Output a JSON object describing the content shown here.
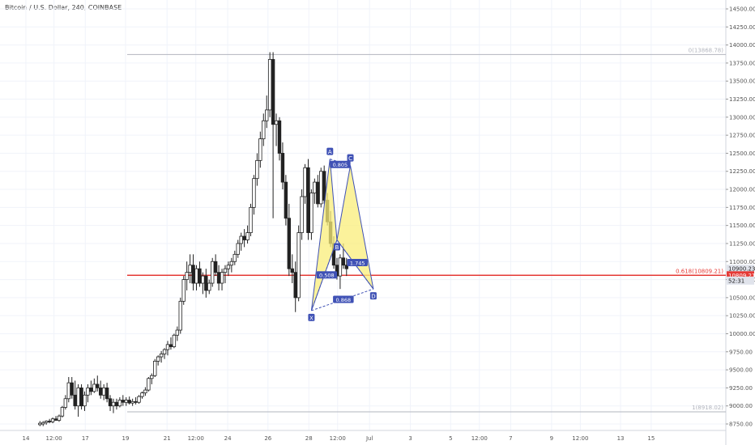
{
  "header": {
    "title": "Bitcoin / U.S. Dollar, 240, COINBASE"
  },
  "chart_data": {
    "type": "candlestick",
    "ylim": [
      8700,
      14750
    ],
    "xlim": [
      0,
      100
    ],
    "y_ticks": [
      8750,
      9000,
      9250,
      9500,
      9750,
      10000,
      10250,
      10500,
      10750,
      11000,
      11250,
      11500,
      11750,
      12000,
      12250,
      12500,
      12750,
      13000,
      13250,
      13500,
      13750,
      14000,
      14250,
      14500
    ],
    "y_tick_labels": [
      "8750.00",
      "9000.00",
      "9250.00",
      "9500.00",
      "9750.00",
      "10000.00",
      "10250.00",
      "10500.00",
      "10750.00",
      "11000.00",
      "11250.00",
      "11500.00",
      "11750.00",
      "12000.00",
      "12250.00",
      "12500.00",
      "12750.00",
      "13000.00",
      "13250.00",
      "13500.00",
      "13750.00",
      "14000.00",
      "14250.00",
      "14500.00"
    ],
    "x_ticks": [
      {
        "x": 3.8,
        "label": "14"
      },
      {
        "x": 8.2,
        "label": "12:00"
      },
      {
        "x": 13.1,
        "label": "17"
      },
      {
        "x": 19.4,
        "label": "19"
      },
      {
        "x": 25.9,
        "label": "21"
      },
      {
        "x": 30.4,
        "label": "12:00"
      },
      {
        "x": 35.4,
        "label": "24"
      },
      {
        "x": 41.7,
        "label": "26"
      },
      {
        "x": 48.1,
        "label": "28"
      },
      {
        "x": 52.6,
        "label": "12:00"
      },
      {
        "x": 57.6,
        "label": "Jul"
      },
      {
        "x": 64.0,
        "label": "3"
      },
      {
        "x": 70.3,
        "label": "5"
      },
      {
        "x": 74.8,
        "label": "12:00"
      },
      {
        "x": 79.7,
        "label": "7"
      },
      {
        "x": 86.1,
        "label": "9"
      },
      {
        "x": 90.6,
        "label": "12:00"
      },
      {
        "x": 96.9,
        "label": "13"
      },
      {
        "x": 101.7,
        "label": "15"
      }
    ],
    "price_axis_labels": [
      {
        "price": 10900.23,
        "label": "10900.23"
      },
      {
        "price": 10809.21,
        "label": "10809.21"
      },
      {
        "price": 10770,
        "label": "52:31"
      }
    ],
    "horizontal_lines": [
      {
        "price": 13868.78,
        "label": "0(13868.78)",
        "color": "#b2b5be"
      },
      {
        "price": 10809.21,
        "label": "0.618(10809.21)",
        "color": "#e53935"
      },
      {
        "price": 8918.02,
        "label": "1(8918.02)",
        "color": "#b2b5be"
      }
    ],
    "pattern": {
      "points": [
        {
          "name": "X",
          "x": 48.5,
          "price": 10320
        },
        {
          "name": "A",
          "x": 51.4,
          "price": 12420
        },
        {
          "name": "B",
          "x": 52.5,
          "price": 11300
        },
        {
          "name": "C",
          "x": 54.6,
          "price": 12330
        },
        {
          "name": "D",
          "x": 58.2,
          "price": 10620
        }
      ],
      "ratios": [
        {
          "label": "0.805",
          "x": 53.0,
          "price": 12340
        },
        {
          "label": "0.508",
          "x": 50.9,
          "price": 10810
        },
        {
          "label": "1.745",
          "x": 55.7,
          "price": 10980
        },
        {
          "label": "0.868",
          "x": 53.5,
          "price": 10470
        }
      ],
      "fill": "#f9ee7a",
      "stroke": "#3f51b5"
    },
    "candles": [
      {
        "x": 6.0,
        "o": 8740,
        "h": 8790,
        "l": 8720,
        "c": 8760
      },
      {
        "x": 6.5,
        "o": 8750,
        "h": 8790,
        "l": 8720,
        "c": 8770
      },
      {
        "x": 7.0,
        "o": 8770,
        "h": 8800,
        "l": 8740,
        "c": 8790
      },
      {
        "x": 7.5,
        "o": 8790,
        "h": 8820,
        "l": 8760,
        "c": 8780
      },
      {
        "x": 8.0,
        "o": 8780,
        "h": 8840,
        "l": 8760,
        "c": 8820
      },
      {
        "x": 8.5,
        "o": 8820,
        "h": 8860,
        "l": 8800,
        "c": 8800
      },
      {
        "x": 9.0,
        "o": 8800,
        "h": 8880,
        "l": 8780,
        "c": 8860
      },
      {
        "x": 9.5,
        "o": 8860,
        "h": 9000,
        "l": 8840,
        "c": 8980
      },
      {
        "x": 10.0,
        "o": 8980,
        "h": 9150,
        "l": 8950,
        "c": 9100
      },
      {
        "x": 10.5,
        "o": 9100,
        "h": 9400,
        "l": 9050,
        "c": 9320
      },
      {
        "x": 11.0,
        "o": 9320,
        "h": 9400,
        "l": 9100,
        "c": 9150
      },
      {
        "x": 11.5,
        "o": 9150,
        "h": 9350,
        "l": 8950,
        "c": 9000
      },
      {
        "x": 12.0,
        "o": 9000,
        "h": 9300,
        "l": 8850,
        "c": 9250
      },
      {
        "x": 12.5,
        "o": 9250,
        "h": 9300,
        "l": 8950,
        "c": 9000
      },
      {
        "x": 13.0,
        "o": 9000,
        "h": 9200,
        "l": 8930,
        "c": 9150
      },
      {
        "x": 13.5,
        "o": 9150,
        "h": 9300,
        "l": 9050,
        "c": 9250
      },
      {
        "x": 14.0,
        "o": 9250,
        "h": 9350,
        "l": 9150,
        "c": 9200
      },
      {
        "x": 14.5,
        "o": 9200,
        "h": 9380,
        "l": 9180,
        "c": 9300
      },
      {
        "x": 15.0,
        "o": 9300,
        "h": 9420,
        "l": 9200,
        "c": 9250
      },
      {
        "x": 15.5,
        "o": 9250,
        "h": 9350,
        "l": 9100,
        "c": 9150
      },
      {
        "x": 16.0,
        "o": 9150,
        "h": 9300,
        "l": 9080,
        "c": 9250
      },
      {
        "x": 16.5,
        "o": 9250,
        "h": 9320,
        "l": 9050,
        "c": 9100
      },
      {
        "x": 17.0,
        "o": 9100,
        "h": 9150,
        "l": 8930,
        "c": 9000
      },
      {
        "x": 17.5,
        "o": 9000,
        "h": 9100,
        "l": 8900,
        "c": 9050
      },
      {
        "x": 18.0,
        "o": 9050,
        "h": 9100,
        "l": 8950,
        "c": 9000
      },
      {
        "x": 18.5,
        "o": 9000,
        "h": 9120,
        "l": 8980,
        "c": 9080
      },
      {
        "x": 19.0,
        "o": 9080,
        "h": 9150,
        "l": 9000,
        "c": 9050
      },
      {
        "x": 19.5,
        "o": 9050,
        "h": 9120,
        "l": 9000,
        "c": 9080
      },
      {
        "x": 20.0,
        "o": 9080,
        "h": 9130,
        "l": 9020,
        "c": 9040
      },
      {
        "x": 20.5,
        "o": 9040,
        "h": 9100,
        "l": 9000,
        "c": 9060
      },
      {
        "x": 21.0,
        "o": 9060,
        "h": 9120,
        "l": 9020,
        "c": 9050
      },
      {
        "x": 21.5,
        "o": 9050,
        "h": 9150,
        "l": 9030,
        "c": 9130
      },
      {
        "x": 22.0,
        "o": 9130,
        "h": 9200,
        "l": 9100,
        "c": 9180
      },
      {
        "x": 22.5,
        "o": 9180,
        "h": 9260,
        "l": 9140,
        "c": 9220
      },
      {
        "x": 23.0,
        "o": 9220,
        "h": 9400,
        "l": 9200,
        "c": 9380
      },
      {
        "x": 23.5,
        "o": 9380,
        "h": 9450,
        "l": 9300,
        "c": 9420
      },
      {
        "x": 24.0,
        "o": 9420,
        "h": 9650,
        "l": 9400,
        "c": 9620
      },
      {
        "x": 24.5,
        "o": 9620,
        "h": 9700,
        "l": 9560,
        "c": 9680
      },
      {
        "x": 25.0,
        "o": 9680,
        "h": 9760,
        "l": 9600,
        "c": 9720
      },
      {
        "x": 25.5,
        "o": 9720,
        "h": 9800,
        "l": 9650,
        "c": 9780
      },
      {
        "x": 26.0,
        "o": 9780,
        "h": 9900,
        "l": 9700,
        "c": 9850
      },
      {
        "x": 26.5,
        "o": 9850,
        "h": 9950,
        "l": 9780,
        "c": 9820
      },
      {
        "x": 27.0,
        "o": 9820,
        "h": 10000,
        "l": 9800,
        "c": 9980
      },
      {
        "x": 27.5,
        "o": 9980,
        "h": 10100,
        "l": 9900,
        "c": 10050
      },
      {
        "x": 28.0,
        "o": 10050,
        "h": 10500,
        "l": 10000,
        "c": 10450
      },
      {
        "x": 28.5,
        "o": 10450,
        "h": 10800,
        "l": 10400,
        "c": 10750
      },
      {
        "x": 29.0,
        "o": 10750,
        "h": 11000,
        "l": 10600,
        "c": 10850
      },
      {
        "x": 29.5,
        "o": 10850,
        "h": 11100,
        "l": 10700,
        "c": 10950
      },
      {
        "x": 30.0,
        "o": 10950,
        "h": 11100,
        "l": 10600,
        "c": 10700
      },
      {
        "x": 30.5,
        "o": 10700,
        "h": 10950,
        "l": 10600,
        "c": 10900
      },
      {
        "x": 31.0,
        "o": 10900,
        "h": 11000,
        "l": 10650,
        "c": 10700
      },
      {
        "x": 31.5,
        "o": 10700,
        "h": 10850,
        "l": 10550,
        "c": 10800
      },
      {
        "x": 32.0,
        "o": 10800,
        "h": 10900,
        "l": 10500,
        "c": 10600
      },
      {
        "x": 32.5,
        "o": 10600,
        "h": 10750,
        "l": 10550,
        "c": 10700
      },
      {
        "x": 33.0,
        "o": 10700,
        "h": 11050,
        "l": 10650,
        "c": 11000
      },
      {
        "x": 33.5,
        "o": 11000,
        "h": 11100,
        "l": 10800,
        "c": 10850
      },
      {
        "x": 34.0,
        "o": 10850,
        "h": 10950,
        "l": 10600,
        "c": 10700
      },
      {
        "x": 34.5,
        "o": 10700,
        "h": 10900,
        "l": 10600,
        "c": 10850
      },
      {
        "x": 35.0,
        "o": 10850,
        "h": 10950,
        "l": 10700,
        "c": 10900
      },
      {
        "x": 35.5,
        "o": 10900,
        "h": 11000,
        "l": 10800,
        "c": 10950
      },
      {
        "x": 36.0,
        "o": 10950,
        "h": 11050,
        "l": 10850,
        "c": 11000
      },
      {
        "x": 36.5,
        "o": 11000,
        "h": 11150,
        "l": 10950,
        "c": 11100
      },
      {
        "x": 37.0,
        "o": 11100,
        "h": 11300,
        "l": 11050,
        "c": 11250
      },
      {
        "x": 37.5,
        "o": 11250,
        "h": 11400,
        "l": 11150,
        "c": 11350
      },
      {
        "x": 38.0,
        "o": 11350,
        "h": 11450,
        "l": 11200,
        "c": 11300
      },
      {
        "x": 38.5,
        "o": 11300,
        "h": 11500,
        "l": 11250,
        "c": 11400
      },
      {
        "x": 39.0,
        "o": 11400,
        "h": 11800,
        "l": 11350,
        "c": 11750
      },
      {
        "x": 39.5,
        "o": 11750,
        "h": 12200,
        "l": 11650,
        "c": 12150
      },
      {
        "x": 40.0,
        "o": 12150,
        "h": 12500,
        "l": 12050,
        "c": 12400
      },
      {
        "x": 40.5,
        "o": 12400,
        "h": 12800,
        "l": 12300,
        "c": 12700
      },
      {
        "x": 41.0,
        "o": 12700,
        "h": 13050,
        "l": 12600,
        "c": 12950
      },
      {
        "x": 41.5,
        "o": 12950,
        "h": 13300,
        "l": 12850,
        "c": 13100
      },
      {
        "x": 42.0,
        "o": 13100,
        "h": 13900,
        "l": 13000,
        "c": 13800
      },
      {
        "x": 42.5,
        "o": 13800,
        "h": 13900,
        "l": 11600,
        "c": 12900
      },
      {
        "x": 43.0,
        "o": 12900,
        "h": 13050,
        "l": 12600,
        "c": 12950
      },
      {
        "x": 43.5,
        "o": 12950,
        "h": 13000,
        "l": 12400,
        "c": 12500
      },
      {
        "x": 44.0,
        "o": 12500,
        "h": 12650,
        "l": 12000,
        "c": 12100
      },
      {
        "x": 44.5,
        "o": 12100,
        "h": 12200,
        "l": 11500,
        "c": 11600
      },
      {
        "x": 45.0,
        "o": 11600,
        "h": 11800,
        "l": 10800,
        "c": 10900
      },
      {
        "x": 45.5,
        "o": 10900,
        "h": 11100,
        "l": 10700,
        "c": 10850
      },
      {
        "x": 46.0,
        "o": 10850,
        "h": 11000,
        "l": 10300,
        "c": 10500
      },
      {
        "x": 46.5,
        "o": 10500,
        "h": 11500,
        "l": 10450,
        "c": 11400
      },
      {
        "x": 47.0,
        "o": 11400,
        "h": 12000,
        "l": 11300,
        "c": 11900
      },
      {
        "x": 47.5,
        "o": 11900,
        "h": 12350,
        "l": 11800,
        "c": 12300
      },
      {
        "x": 48.0,
        "o": 12300,
        "h": 12420,
        "l": 11300,
        "c": 11400
      },
      {
        "x": 48.5,
        "o": 11400,
        "h": 12000,
        "l": 11300,
        "c": 11950
      },
      {
        "x": 49.0,
        "o": 11950,
        "h": 12150,
        "l": 11800,
        "c": 12100
      },
      {
        "x": 49.5,
        "o": 12100,
        "h": 12200,
        "l": 11750,
        "c": 11800
      },
      {
        "x": 50.0,
        "o": 11800,
        "h": 12300,
        "l": 11750,
        "c": 12250
      },
      {
        "x": 50.5,
        "o": 12250,
        "h": 12330,
        "l": 11800,
        "c": 11850
      },
      {
        "x": 51.0,
        "o": 11850,
        "h": 11950,
        "l": 11500,
        "c": 11550
      },
      {
        "x": 51.5,
        "o": 11550,
        "h": 11700,
        "l": 11200,
        "c": 11250
      },
      {
        "x": 52.0,
        "o": 11250,
        "h": 11350,
        "l": 10900,
        "c": 10950
      },
      {
        "x": 52.5,
        "o": 10950,
        "h": 11050,
        "l": 10750,
        "c": 10800
      },
      {
        "x": 53.0,
        "o": 10800,
        "h": 11100,
        "l": 10620,
        "c": 11050
      },
      {
        "x": 53.5,
        "o": 11050,
        "h": 11250,
        "l": 10900,
        "c": 10950
      },
      {
        "x": 54.0,
        "o": 10950,
        "h": 11050,
        "l": 10800,
        "c": 10900
      }
    ]
  }
}
